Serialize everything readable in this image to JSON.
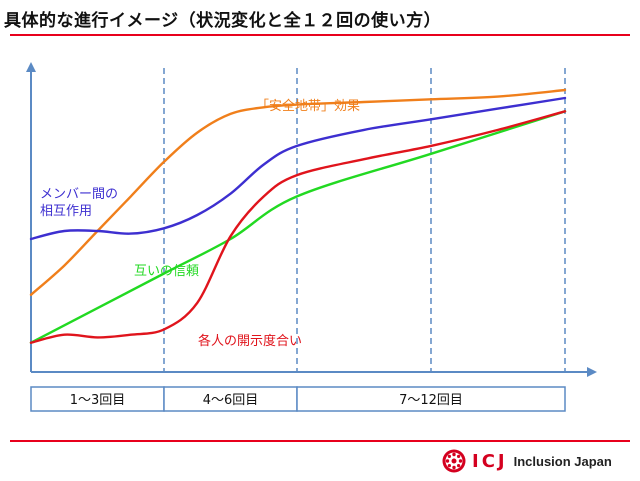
{
  "title": "具体的な進行イメージ（状況変化と全１２回の使い方）",
  "chart_data": {
    "type": "line",
    "x_range": [
      0,
      12
    ],
    "y_range": [
      0,
      100
    ],
    "phases": [
      {
        "label": "1～3回目",
        "start": 0,
        "end": 4
      },
      {
        "label": "4～6回目",
        "start": 4,
        "end": 8
      },
      {
        "label": "7～12回目",
        "start": 8,
        "end": 12
      }
    ],
    "gridlines_x": [
      4,
      8,
      12
    ],
    "series": [
      {
        "name": "「安全地帯」効果",
        "color": "#f07f1b",
        "points": [
          [
            0,
            23
          ],
          [
            1,
            34
          ],
          [
            2,
            47
          ],
          [
            3,
            60
          ],
          [
            4,
            73
          ],
          [
            5,
            84
          ],
          [
            6,
            91
          ],
          [
            7,
            93.5
          ],
          [
            8,
            94.5
          ],
          [
            9,
            95.5
          ],
          [
            10,
            96.5
          ],
          [
            11,
            97.5
          ],
          [
            12,
            100
          ]
        ]
      },
      {
        "name": "メンバー間の相互作用",
        "color": "#3d2fd0",
        "points": [
          [
            0,
            44
          ],
          [
            1,
            47
          ],
          [
            2,
            47
          ],
          [
            3,
            46
          ],
          [
            4,
            48
          ],
          [
            5,
            53
          ],
          [
            6,
            61
          ],
          [
            7,
            72
          ],
          [
            8,
            79
          ],
          [
            9,
            85
          ],
          [
            10,
            89
          ],
          [
            11,
            93
          ],
          [
            12,
            97
          ]
        ]
      },
      {
        "name": "互いの信頼",
        "color": "#22d922",
        "points": [
          [
            0,
            5
          ],
          [
            4,
            31
          ],
          [
            6,
            44
          ],
          [
            8,
            60
          ],
          [
            10,
            76
          ],
          [
            12,
            92
          ]
        ]
      },
      {
        "name": "各人の開示度合い",
        "color": "#e0141c",
        "points": [
          [
            0,
            5
          ],
          [
            1,
            8
          ],
          [
            2,
            7
          ],
          [
            3,
            8
          ],
          [
            4,
            10
          ],
          [
            5,
            20
          ],
          [
            6,
            45
          ],
          [
            7,
            60
          ],
          [
            8,
            68
          ],
          [
            9,
            74
          ],
          [
            10,
            79
          ],
          [
            11,
            85
          ],
          [
            12,
            92
          ]
        ]
      }
    ]
  },
  "brand": {
    "icj": "ICJ",
    "name": "Inclusion Japan",
    "color": "#d4001f"
  }
}
